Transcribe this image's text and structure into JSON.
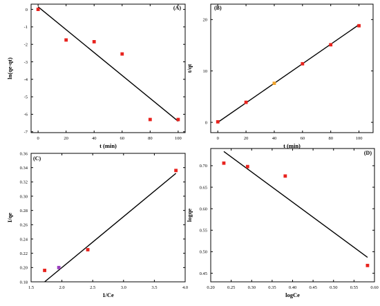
{
  "chart_data": [
    {
      "type": "scatter",
      "panel_label": "(A)",
      "xlabel": "t (min)",
      "ylabel": "ln(qe-qt)",
      "xlim": [
        -5,
        105
      ],
      "ylim": [
        -7.05,
        0.3
      ],
      "x_ticks": [
        0,
        20,
        40,
        60,
        80,
        100
      ],
      "y_ticks": [
        0,
        -1,
        -2,
        -3,
        -4,
        -5,
        -6,
        -7
      ],
      "x_tick_labels": [
        "0",
        "20",
        "40",
        "60",
        "80",
        "100"
      ],
      "y_tick_labels": [
        "0",
        "-1",
        "-2",
        "-3",
        "-4",
        "-5",
        "-6",
        "-7"
      ],
      "points": [
        {
          "x": 0,
          "y": 0.0,
          "color": "#e8231e"
        },
        {
          "x": 20,
          "y": -1.75,
          "color": "#e8231e"
        },
        {
          "x": 40,
          "y": -1.85,
          "color": "#e8231e"
        },
        {
          "x": 60,
          "y": -2.55,
          "color": "#e8231e"
        },
        {
          "x": 80,
          "y": -6.3,
          "color": "#e8231e"
        },
        {
          "x": 100,
          "y": -6.3,
          "color": "#e8231e"
        }
      ],
      "fit": {
        "x1": 0,
        "y1": 0.15,
        "x2": 100,
        "y2": -6.4
      },
      "grid": false
    },
    {
      "type": "scatter",
      "panel_label": "(B)",
      "xlabel": "t (min)",
      "ylabel": "t/qt",
      "xlim": [
        -5,
        110
      ],
      "ylim": [
        -2,
        23
      ],
      "x_ticks": [
        0,
        20,
        40,
        60,
        80,
        100
      ],
      "y_ticks": [
        0,
        10,
        20
      ],
      "x_tick_labels": [
        "0",
        "20",
        "40",
        "60",
        "80",
        "100"
      ],
      "y_tick_labels": [
        "0",
        "10",
        "20"
      ],
      "points": [
        {
          "x": 0,
          "y": 0.1,
          "color": "#e8231e"
        },
        {
          "x": 20,
          "y": 3.9,
          "color": "#e8231e"
        },
        {
          "x": 40,
          "y": 7.6,
          "color": "#f0a22a"
        },
        {
          "x": 60,
          "y": 11.4,
          "color": "#e8231e"
        },
        {
          "x": 80,
          "y": 15.1,
          "color": "#e8231e"
        },
        {
          "x": 100,
          "y": 18.8,
          "color": "#e8231e"
        }
      ],
      "fit": {
        "x1": 0,
        "y1": 0.0,
        "x2": 100,
        "y2": 19.0
      },
      "grid": false
    },
    {
      "type": "scatter",
      "panel_label": "(C)",
      "xlabel": "1/Ce",
      "ylabel": "I/qe",
      "xlim": [
        1.5,
        4.0
      ],
      "ylim": [
        0.18,
        0.36
      ],
      "x_ticks": [
        1.5,
        2.0,
        2.5,
        3.0,
        3.5,
        4.0
      ],
      "y_ticks": [
        0.18,
        0.2,
        0.22,
        0.24,
        0.26,
        0.28,
        0.3,
        0.32,
        0.34,
        0.36
      ],
      "x_tick_labels": [
        "1.5",
        "2.0",
        "2.5",
        "3.0",
        "3.5",
        "4.0"
      ],
      "y_tick_labels": [
        "0.18",
        "0.20",
        "0.22",
        "0.24",
        "0.26",
        "0.28",
        "0.30",
        "0.32",
        "0.34",
        "0.36"
      ],
      "points": [
        {
          "x": 1.72,
          "y": 0.196,
          "color": "#e8231e"
        },
        {
          "x": 1.95,
          "y": 0.2,
          "color": "#9b3fc0"
        },
        {
          "x": 2.42,
          "y": 0.225,
          "color": "#e8231e"
        },
        {
          "x": 3.85,
          "y": 0.336,
          "color": "#e8231e"
        }
      ],
      "fit": {
        "x1": 1.72,
        "y1": 0.18,
        "x2": 3.85,
        "y2": 0.332
      },
      "grid": false
    },
    {
      "type": "scatter",
      "panel_label": "(D)",
      "xlabel": "logCe",
      "ylabel": "logqe",
      "xlim": [
        0.2,
        0.6
      ],
      "ylim": [
        0.43,
        0.74
      ],
      "x_ticks": [
        0.2,
        0.25,
        0.3,
        0.35,
        0.4,
        0.45,
        0.5,
        0.55,
        0.6
      ],
      "y_ticks": [
        0.45,
        0.5,
        0.55,
        0.6,
        0.65,
        0.7
      ],
      "x_tick_labels": [
        "0.20",
        "0.25",
        "0.30",
        "0.35",
        "0.40",
        "0.45",
        "0.50",
        "0.55",
        "0.60"
      ],
      "y_tick_labels": [
        "0.45",
        "0.50",
        "0.55",
        "0.60",
        "0.65",
        "0.70"
      ],
      "points": [
        {
          "x": 0.232,
          "y": 0.706,
          "color": "#e8231e"
        },
        {
          "x": 0.29,
          "y": 0.698,
          "color": "#e8231e"
        },
        {
          "x": 0.382,
          "y": 0.676,
          "color": "#e8231e"
        },
        {
          "x": 0.583,
          "y": 0.468,
          "color": "#e8231e"
        }
      ],
      "fit": {
        "x1": 0.232,
        "y1": 0.733,
        "x2": 0.583,
        "y2": 0.487
      },
      "grid": false
    }
  ]
}
